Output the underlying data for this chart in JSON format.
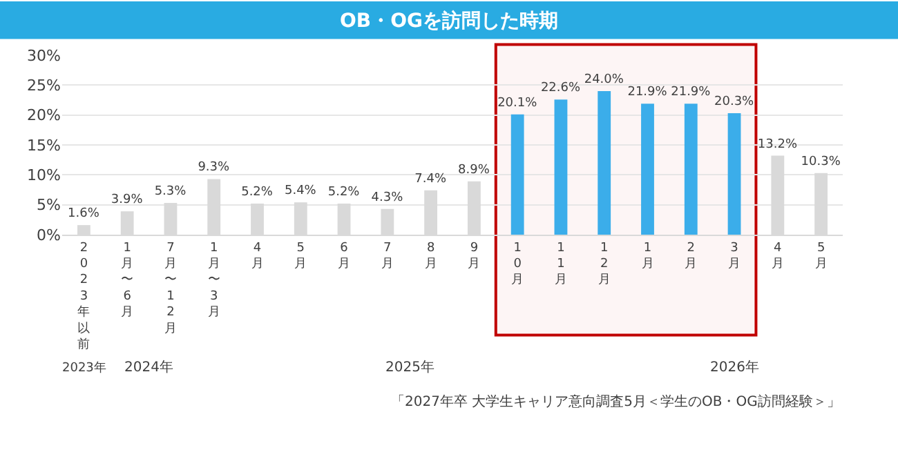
{
  "chart_data": {
    "type": "bar",
    "title": "OB・OGを訪問した時期",
    "categories": [
      "2023年以前",
      "1月〜6月",
      "7月〜12月",
      "1月〜3月",
      "4月",
      "5月",
      "6月",
      "7月",
      "8月",
      "9月",
      "10月",
      "11月",
      "12月",
      "1月",
      "2月",
      "3月",
      "4月",
      "5月"
    ],
    "values": [
      1.6,
      3.9,
      5.3,
      9.3,
      5.2,
      5.4,
      5.2,
      4.3,
      7.4,
      8.9,
      20.1,
      22.6,
      24.0,
      21.9,
      21.9,
      20.3,
      13.2,
      10.3
    ],
    "colors": [
      "#d9d9d9",
      "#d9d9d9",
      "#d9d9d9",
      "#d9d9d9",
      "#d9d9d9",
      "#d9d9d9",
      "#d9d9d9",
      "#d9d9d9",
      "#d9d9d9",
      "#d9d9d9",
      "#3badea",
      "#3badea",
      "#3badea",
      "#3badea",
      "#3badea",
      "#3badea",
      "#d9d9d9",
      "#d9d9d9"
    ],
    "value_labels": [
      "1.6%",
      "3.9%",
      "5.3%",
      "9.3%",
      "5.2%",
      "5.4%",
      "5.2%",
      "4.3%",
      "7.4%",
      "8.9%",
      "20.1%",
      "22.6%",
      "24.0%",
      "21.9%",
      "21.9%",
      "20.3%",
      "13.2%",
      "10.3%"
    ],
    "ylim": [
      0,
      30
    ],
    "yticks": [
      {
        "value": 0,
        "label": "0%"
      },
      {
        "value": 5,
        "label": "5%"
      },
      {
        "value": 10,
        "label": "10%"
      },
      {
        "value": 15,
        "label": "15%"
      },
      {
        "value": 20,
        "label": "20%"
      },
      {
        "value": 25,
        "label": "25%"
      },
      {
        "value": 30,
        "label": "30%"
      }
    ],
    "grid": "y",
    "bands": [
      {
        "axis": "x",
        "from": "10月",
        "to": "3月",
        "color": "#c00000"
      }
    ],
    "annotations": [
      "2023年",
      "2024年",
      "2025年",
      "2026年",
      "「2027年卒 大学生キャリア意向調査5月＜学生のOB・OG訪問経験＞」"
    ]
  }
}
